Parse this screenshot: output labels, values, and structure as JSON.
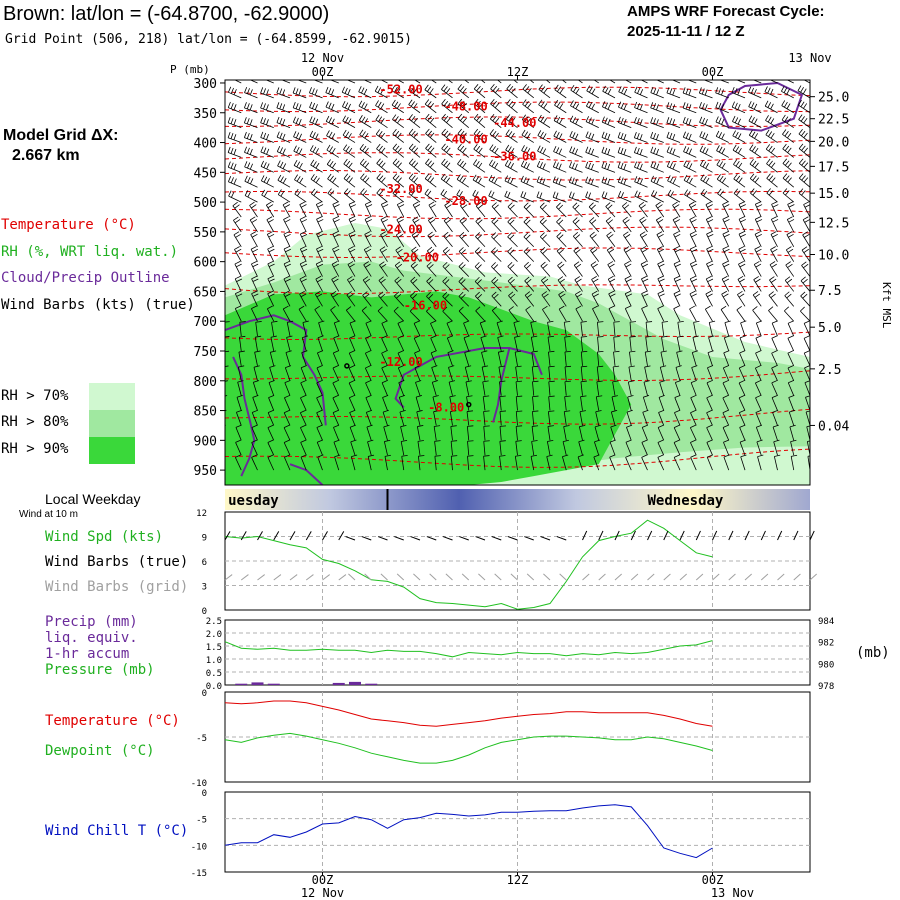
{
  "header": {
    "title": "Brown:  lat/lon = (-64.8700, -62.9000)",
    "grid_point": "Grid Point (506, 218) lat/lon = (-64.8599, -62.9015)",
    "cycle_line1": "AMPS WRF Forecast Cycle:",
    "cycle_line2": "2025-11-11 / 12  Z"
  },
  "model_grid": {
    "line1": "Model Grid ΔX:",
    "line2": "2.667 km"
  },
  "sounding_legend": {
    "temperature": "Temperature (°C)",
    "rh": "RH (%, WRT liq. wat.)",
    "cloud": "Cloud/Precip Outline",
    "wind": "Wind Barbs (kts) (true)"
  },
  "rh_key": [
    {
      "label": "RH > 70%",
      "color": "#d0f8d0"
    },
    {
      "label": "RH > 80%",
      "color": "#a0e8a0"
    },
    {
      "label": "RH > 90%",
      "color": "#3ad83a"
    }
  ],
  "colors": {
    "rh70": "#d0f8d0",
    "rh80": "#a0e8a0",
    "rh90": "#3ad83a",
    "temperature": "#e00000",
    "cloud": "#6a2a9a",
    "green_line": "#20c020",
    "blue_line": "#0010c0",
    "precip_label": "#6a2a9a",
    "gray": "#a0a0a0"
  },
  "time_axis": {
    "top_dates": [
      {
        "text": "12 Nov",
        "at": 6
      },
      {
        "text": "13 Nov",
        "at": 36
      }
    ],
    "ticks": [
      {
        "text": "00Z",
        "at": 6
      },
      {
        "text": "12Z",
        "at": 18
      },
      {
        "text": "00Z",
        "at": 30
      }
    ],
    "bottom_dates": [
      {
        "text": "12 Nov",
        "at": 6
      },
      {
        "text": "13 Nov",
        "at": 30
      }
    ]
  },
  "weekday": {
    "label": "Local Weekday",
    "days": [
      {
        "text": "uesday",
        "at": 0.5
      },
      {
        "text": "Wednesday",
        "at": 26
      }
    ],
    "midnight_at": 10
  },
  "chart_data": [
    {
      "type": "heatmap",
      "name": "sounding",
      "pressure_label": "P (mb)",
      "height_label": "Kft MSL",
      "pressure_ticks": [
        300,
        350,
        400,
        450,
        500,
        550,
        600,
        650,
        700,
        750,
        800,
        850,
        900,
        950
      ],
      "height_ticks": [
        {
          "label": "25.0",
          "p": 323
        },
        {
          "label": "22.5",
          "p": 360
        },
        {
          "label": "20.0",
          "p": 398
        },
        {
          "label": "17.5",
          "p": 440
        },
        {
          "label": "15.0",
          "p": 485
        },
        {
          "label": "12.5",
          "p": 534
        },
        {
          "label": "10.0",
          "p": 588
        },
        {
          "label": "7.5",
          "p": 648
        },
        {
          "label": "5.0",
          "p": 710
        },
        {
          "label": "2.5",
          "p": 780
        },
        {
          "label": "0.04",
          "p": 875
        }
      ],
      "isotherm_labels": [
        {
          "text": "-52.00",
          "t": 9.5,
          "p": 318
        },
        {
          "text": "-48.00",
          "t": 13.5,
          "p": 346
        },
        {
          "text": "-44.00",
          "t": 16.5,
          "p": 374
        },
        {
          "text": "-40.00",
          "t": 13.5,
          "p": 402
        },
        {
          "text": "-36.00",
          "t": 16.5,
          "p": 430
        },
        {
          "text": "-32.00",
          "t": 9.5,
          "p": 485
        },
        {
          "text": "-28.00",
          "t": 13.5,
          "p": 505
        },
        {
          "text": "-24.00",
          "t": 9.5,
          "p": 553
        },
        {
          "text": "-20.00",
          "t": 10.5,
          "p": 600
        },
        {
          "text": "-16.00",
          "t": 11.0,
          "p": 680
        },
        {
          "text": "-12.00",
          "t": 9.5,
          "p": 775
        },
        {
          "text": "-8.00",
          "t": 12.5,
          "p": 852
        }
      ]
    },
    {
      "type": "line",
      "name": "wind",
      "labels": {
        "speed": "Wind Spd (kts)",
        "true": "Wind Barbs (true)",
        "grid": "Wind Barbs (grid)",
        "height": "Wind at 10 m"
      },
      "y_ticks": [
        0,
        3,
        6,
        9,
        12
      ],
      "ylim": [
        0,
        12
      ],
      "x": [
        0,
        1,
        2,
        3,
        4,
        5,
        6,
        7,
        8,
        9,
        10,
        11,
        12,
        13,
        14,
        15,
        16,
        17,
        18,
        19,
        20,
        21,
        22,
        23,
        24,
        25,
        26,
        27,
        28,
        29,
        30
      ],
      "speed": [
        9,
        8.8,
        9,
        8.5,
        8,
        7.6,
        6.2,
        5.7,
        4.8,
        3.7,
        3.5,
        2.8,
        1.4,
        0.9,
        0.8,
        0.6,
        0.4,
        0.8,
        0.1,
        0.3,
        0.8,
        3.5,
        6.5,
        8.5,
        9,
        9.4,
        11,
        10,
        8.5,
        7,
        6.5
      ]
    },
    {
      "type": "line",
      "name": "precip_pressure",
      "labels": {
        "precip": "Precip (mm)",
        "liq": "liq. equiv.",
        "accum": "1-hr accum",
        "pressure": "Pressure (mb)",
        "unit": "(mb)"
      },
      "precip_ticks": [
        "2.5",
        "2.0",
        "1.5",
        "1.0",
        "0.5",
        "0.0"
      ],
      "pressure_ticks": [
        984,
        982,
        980,
        978
      ],
      "precip_lim": [
        0,
        2.5
      ],
      "pressure_lim": [
        978,
        984
      ],
      "x": [
        0,
        1,
        2,
        3,
        4,
        5,
        6,
        7,
        8,
        9,
        10,
        11,
        12,
        13,
        14,
        15,
        16,
        17,
        18,
        19,
        20,
        21,
        22,
        23,
        24,
        25,
        26,
        27,
        28,
        29,
        30
      ],
      "pressure": [
        982,
        981.4,
        981.3,
        981.4,
        981.2,
        981.2,
        981.3,
        981.2,
        981.2,
        981.0,
        981.2,
        981.1,
        981.1,
        980.9,
        980.6,
        981.0,
        980.9,
        980.8,
        981.0,
        980.9,
        980.9,
        980.7,
        980.9,
        980.8,
        981.0,
        980.9,
        981.0,
        981.3,
        981.6,
        981.7,
        982.1
      ],
      "precip": [
        0,
        0.05,
        0.1,
        0.05,
        0,
        0,
        0,
        0.08,
        0.12,
        0.05,
        0,
        0,
        0,
        0,
        0,
        0,
        0,
        0,
        0,
        0,
        0,
        0,
        0,
        0,
        0,
        0,
        0,
        0,
        0,
        0,
        0
      ]
    },
    {
      "type": "line",
      "name": "temperature",
      "labels": {
        "temperature": "Temperature (°C)",
        "dewpoint": "Dewpoint (°C)"
      },
      "y_ticks": [
        0,
        -5,
        -10
      ],
      "ylim": [
        -10,
        0
      ],
      "x": [
        0,
        1,
        2,
        3,
        4,
        5,
        6,
        7,
        8,
        9,
        10,
        11,
        12,
        13,
        14,
        15,
        16,
        17,
        18,
        19,
        20,
        21,
        22,
        23,
        24,
        25,
        26,
        27,
        28,
        29,
        30
      ],
      "temperature": [
        -1.2,
        -1.3,
        -1.2,
        -1.0,
        -1.0,
        -1.2,
        -1.6,
        -2.0,
        -2.5,
        -3.0,
        -3.2,
        -3.4,
        -3.7,
        -3.8,
        -3.6,
        -3.4,
        -3.2,
        -2.9,
        -2.7,
        -2.5,
        -2.4,
        -2.2,
        -2.2,
        -2.3,
        -2.3,
        -2.3,
        -2.3,
        -2.6,
        -3.0,
        -3.5,
        -3.8
      ],
      "dewpoint": [
        -5.3,
        -5.6,
        -5.1,
        -4.8,
        -4.6,
        -4.9,
        -5.3,
        -5.7,
        -6.2,
        -6.8,
        -7.2,
        -7.6,
        -7.9,
        -7.9,
        -7.6,
        -7.0,
        -6.2,
        -5.6,
        -5.3,
        -5.0,
        -4.9,
        -4.9,
        -5.0,
        -5.1,
        -5.3,
        -5.3,
        -5.0,
        -5.2,
        -5.6,
        -6.0,
        -6.5
      ]
    },
    {
      "type": "line",
      "name": "wind_chill",
      "labels": {
        "wind_chill": "Wind Chill T (°C)"
      },
      "y_ticks": [
        0,
        -5,
        -10,
        -15
      ],
      "ylim": [
        -15,
        0
      ],
      "x": [
        0,
        1,
        2,
        3,
        4,
        5,
        6,
        7,
        8,
        9,
        10,
        11,
        12,
        13,
        14,
        15,
        16,
        17,
        18,
        19,
        20,
        21,
        22,
        23,
        24,
        25,
        26,
        27,
        28,
        29,
        30
      ],
      "wind_chill": [
        -10,
        -9.5,
        -9.5,
        -8,
        -8.5,
        -7.5,
        -6,
        -5.8,
        -4.6,
        -5.2,
        -6.8,
        -5.2,
        -4.8,
        -4,
        -4.2,
        -4.5,
        -4.3,
        -3.8,
        -3.8,
        -3.6,
        -3.5,
        -3.5,
        -3,
        -2.6,
        -2.4,
        -2.8,
        -6.3,
        -10.5,
        -11.5,
        -12.3,
        -10.5
      ]
    }
  ]
}
